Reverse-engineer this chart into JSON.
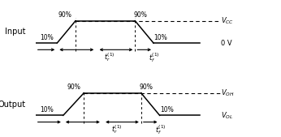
{
  "bg_color": "#ffffff",
  "line_color": "#000000",
  "figsize": [
    3.46,
    1.69
  ],
  "dpi": 100,
  "input_label": "Input",
  "output_label": "Output",
  "vcc_label": "$V_{CC}$",
  "v0_label": "0 V",
  "voh_label": "$V_{OH}$",
  "vol_label": "$V_{OL}$",
  "pct90": "90%",
  "pct10": "10%"
}
